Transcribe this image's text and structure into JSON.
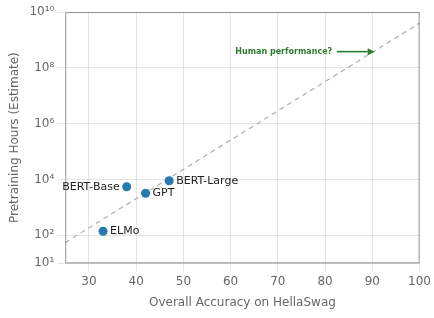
{
  "chart_data": {
    "type": "scatter",
    "xlabel": "Overall Accuracy on HellaSwag",
    "ylabel": "Pretraining Hours (Estimate)",
    "log": "y",
    "grid": true,
    "series": [
      {
        "type": "line",
        "line_style": "dashed",
        "color": "#b0b0b0",
        "x": [
          25,
          100
        ],
        "values": [
          55,
          4000000000
        ]
      },
      {
        "type": "scatter",
        "marker": "circle",
        "color": "#2779b0",
        "x": [
          33,
          38,
          42,
          47
        ],
        "values": [
          140,
          5500,
          3200,
          9000
        ],
        "labels": [
          "ELMo",
          "BERT-Base",
          "GPT",
          "BERT-Large"
        ]
      }
    ],
    "annotations": [
      {
        "text": "Human performance?",
        "color": "#2d7d2d",
        "x": 61,
        "y": 380000000,
        "arrow_x": [
          82.5,
          90.5
        ]
      }
    ],
    "xlim": [
      25,
      100
    ],
    "xticks": [
      30,
      40,
      50,
      60,
      70,
      80,
      90,
      100
    ],
    "ylim": [
      10,
      10000000000
    ],
    "yticks": [
      {
        "value": 10,
        "label": "10¹"
      },
      {
        "value": 100,
        "label": "10²"
      },
      {
        "value": 10000,
        "label": "10⁴"
      },
      {
        "value": 1000000,
        "label": "10⁶"
      },
      {
        "value": 100000000,
        "label": "10⁸"
      },
      {
        "value": 10000000000,
        "label": "10¹⁰"
      }
    ]
  }
}
